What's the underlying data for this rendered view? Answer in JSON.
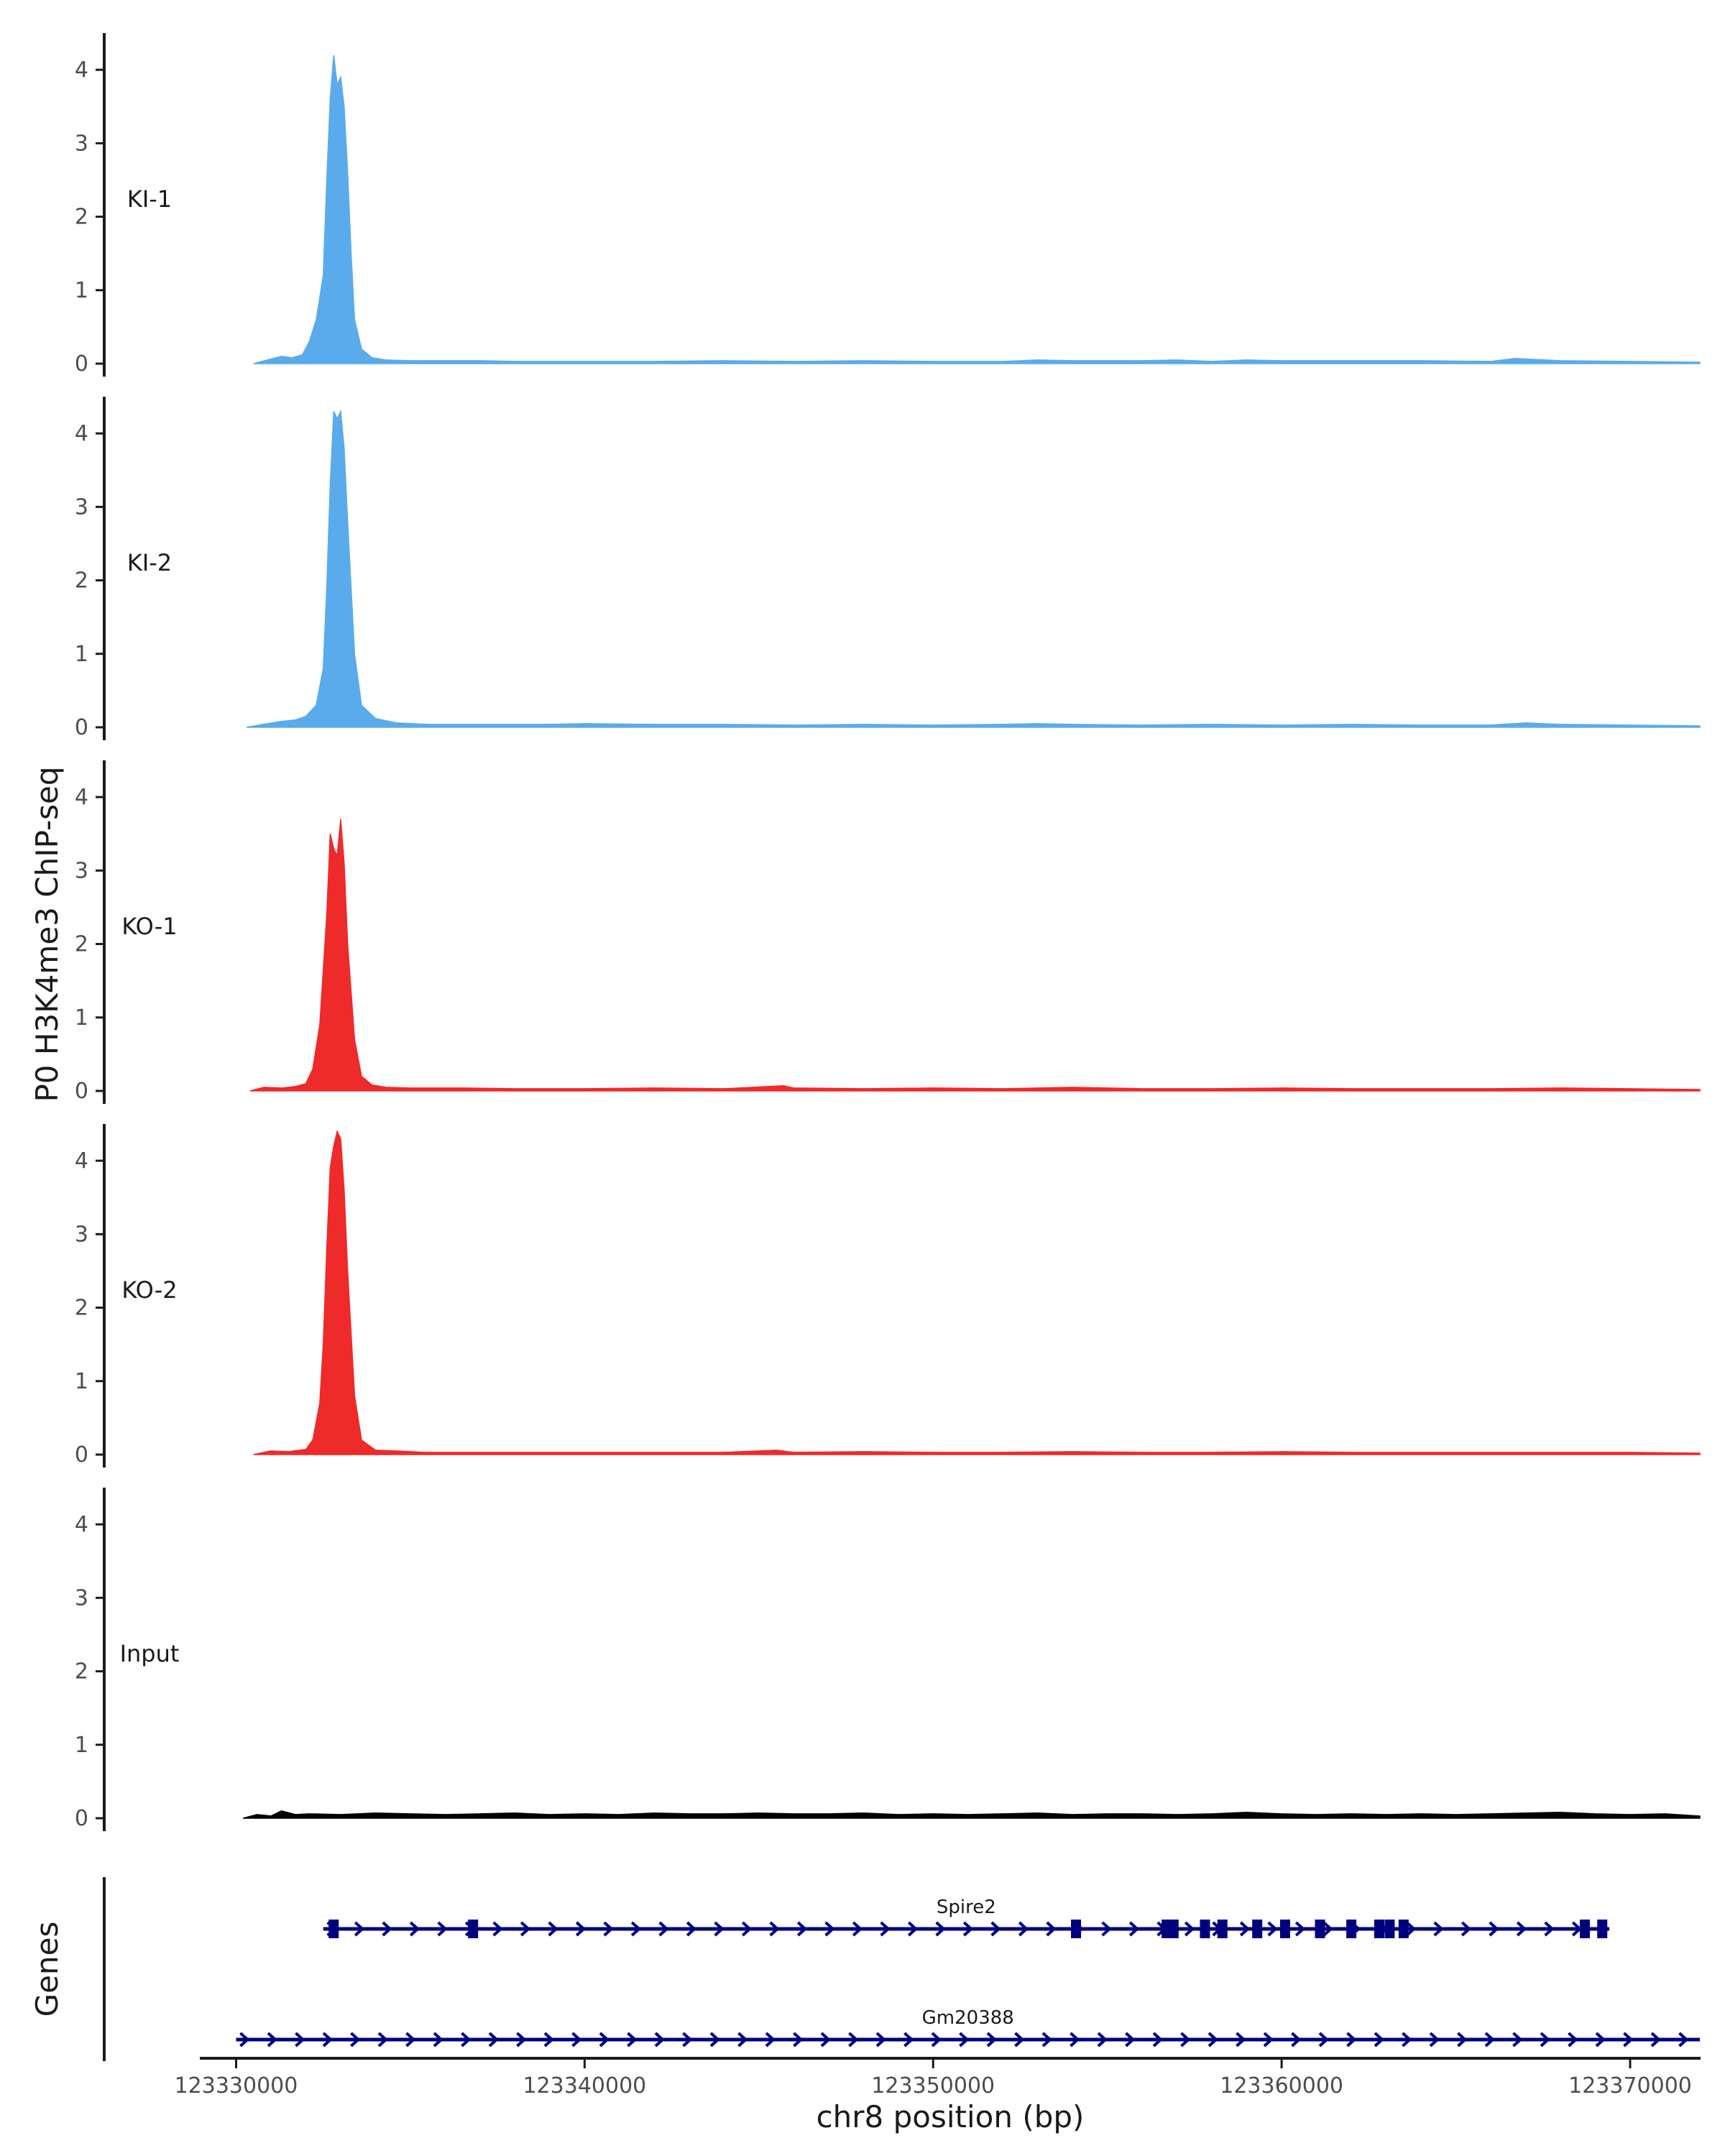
{
  "chart_data": {
    "type": "area",
    "ylabel": "P0 H3K4me3 ChIP-seq",
    "xlabel": "chr8 position (bp)",
    "genes_label": "Genes",
    "xlim": [
      123329000,
      123372000
    ],
    "ylim": [
      0,
      4.5
    ],
    "y_ticks": [
      0,
      1,
      2,
      3,
      4
    ],
    "x_ticks": [
      {
        "value": 123330000,
        "label": "123330000"
      },
      {
        "value": 123340000,
        "label": "123340000"
      },
      {
        "value": 123350000,
        "label": "123350000"
      },
      {
        "value": 123360000,
        "label": "123360000"
      },
      {
        "value": 123370000,
        "label": "123370000"
      }
    ],
    "tracks": [
      {
        "name": "KI-1",
        "color": "#5aabeb",
        "x": [
          123330500,
          123330900,
          123331300,
          123331600,
          123331900,
          123332100,
          123332300,
          123332500,
          123332600,
          123332700,
          123332800,
          123332900,
          123333000,
          123333100,
          123333200,
          123333300,
          123333400,
          123333600,
          123333900,
          123334300,
          123335000,
          123336000,
          123337000,
          123338000,
          123340000,
          123342000,
          123344000,
          123346000,
          123348000,
          123350000,
          123352000,
          123353000,
          123354000,
          123356000,
          123357000,
          123358000,
          123359000,
          123360000,
          123362000,
          123364000,
          123366000,
          123366700,
          123368000,
          123370000,
          123372000
        ],
        "values": [
          0.0,
          0.05,
          0.1,
          0.08,
          0.12,
          0.3,
          0.6,
          1.2,
          2.5,
          3.6,
          4.2,
          3.8,
          3.9,
          3.5,
          2.6,
          1.5,
          0.6,
          0.2,
          0.08,
          0.05,
          0.04,
          0.04,
          0.04,
          0.03,
          0.03,
          0.03,
          0.04,
          0.03,
          0.04,
          0.03,
          0.03,
          0.05,
          0.04,
          0.04,
          0.05,
          0.03,
          0.05,
          0.04,
          0.04,
          0.04,
          0.03,
          0.07,
          0.04,
          0.03,
          0.02
        ]
      },
      {
        "name": "KI-2",
        "color": "#5aabeb",
        "x": [
          123330300,
          123330900,
          123331300,
          123331700,
          123332000,
          123332300,
          123332500,
          123332600,
          123332700,
          123332800,
          123332900,
          123333000,
          123333100,
          123333200,
          123333400,
          123333600,
          123334000,
          123334600,
          123335500,
          123337000,
          123339000,
          123340000,
          123342000,
          123344000,
          123346000,
          123348000,
          123350000,
          123352000,
          123353000,
          123354000,
          123356000,
          123358000,
          123360000,
          123362000,
          123364000,
          123366000,
          123367000,
          123368000,
          123370000,
          123372000
        ],
        "values": [
          0.0,
          0.05,
          0.08,
          0.1,
          0.15,
          0.3,
          0.8,
          1.9,
          3.3,
          4.3,
          4.2,
          4.3,
          3.8,
          2.8,
          1.0,
          0.3,
          0.12,
          0.06,
          0.04,
          0.04,
          0.04,
          0.05,
          0.04,
          0.04,
          0.03,
          0.04,
          0.03,
          0.04,
          0.05,
          0.04,
          0.03,
          0.04,
          0.03,
          0.04,
          0.03,
          0.03,
          0.06,
          0.04,
          0.03,
          0.02
        ]
      },
      {
        "name": "KO-1",
        "color": "#ee2a2a",
        "x": [
          123330400,
          123330800,
          123331300,
          123331700,
          123332000,
          123332200,
          123332400,
          123332600,
          123332700,
          123332800,
          123332900,
          123333000,
          123333100,
          123333200,
          123333400,
          123333600,
          123333900,
          123334300,
          123335000,
          123336500,
          123338000,
          123340000,
          123342000,
          123344000,
          123345700,
          123346000,
          123348000,
          123350000,
          123352000,
          123354000,
          123356000,
          123358000,
          123360000,
          123362000,
          123364000,
          123366000,
          123368000,
          123370000,
          123372000
        ],
        "values": [
          0.0,
          0.05,
          0.04,
          0.06,
          0.1,
          0.3,
          0.9,
          2.4,
          3.5,
          3.3,
          3.2,
          3.7,
          3.1,
          2.0,
          0.7,
          0.2,
          0.08,
          0.05,
          0.04,
          0.04,
          0.03,
          0.03,
          0.04,
          0.03,
          0.07,
          0.04,
          0.03,
          0.04,
          0.03,
          0.05,
          0.03,
          0.03,
          0.04,
          0.03,
          0.03,
          0.03,
          0.04,
          0.03,
          0.02
        ]
      },
      {
        "name": "KO-2",
        "color": "#ee2a2a",
        "x": [
          123330500,
          123331000,
          123331500,
          123332000,
          123332200,
          123332400,
          123332500,
          123332600,
          123332700,
          123332800,
          123332900,
          123333000,
          123333100,
          123333200,
          123333400,
          123333600,
          123334000,
          123334600,
          123335400,
          123336500,
          123338000,
          123340000,
          123342000,
          123344000,
          123345500,
          123346000,
          123348000,
          123350000,
          123352000,
          123354000,
          123356000,
          123358000,
          123360000,
          123362000,
          123364000,
          123366000,
          123368000,
          123370000,
          123372000
        ],
        "values": [
          0.0,
          0.05,
          0.04,
          0.07,
          0.2,
          0.7,
          1.5,
          2.8,
          3.9,
          4.2,
          4.4,
          4.3,
          3.6,
          2.5,
          0.8,
          0.2,
          0.06,
          0.05,
          0.03,
          0.03,
          0.03,
          0.03,
          0.03,
          0.03,
          0.06,
          0.03,
          0.04,
          0.03,
          0.03,
          0.04,
          0.03,
          0.03,
          0.04,
          0.03,
          0.03,
          0.03,
          0.03,
          0.03,
          0.02
        ]
      },
      {
        "name": "Input",
        "color": "#000000",
        "x": [
          123330200,
          123330600,
          123331000,
          123331300,
          123331700,
          123332100,
          123333000,
          123334000,
          123335000,
          123336000,
          123337000,
          123338000,
          123339000,
          123340000,
          123341000,
          123342000,
          123343000,
          123344000,
          123345000,
          123346000,
          123347000,
          123348000,
          123349000,
          123350000,
          123351000,
          123352000,
          123353000,
          123354000,
          123355000,
          123356000,
          123357000,
          123358000,
          123359000,
          123360000,
          123361000,
          123362000,
          123363000,
          123364000,
          123365000,
          123366000,
          123367000,
          123368000,
          123369000,
          123370000,
          123371000,
          123372000
        ],
        "values": [
          0.0,
          0.05,
          0.03,
          0.1,
          0.05,
          0.06,
          0.05,
          0.07,
          0.06,
          0.05,
          0.06,
          0.07,
          0.05,
          0.06,
          0.05,
          0.07,
          0.06,
          0.06,
          0.07,
          0.06,
          0.06,
          0.07,
          0.05,
          0.06,
          0.05,
          0.06,
          0.07,
          0.05,
          0.06,
          0.06,
          0.05,
          0.06,
          0.08,
          0.06,
          0.05,
          0.06,
          0.05,
          0.06,
          0.05,
          0.06,
          0.07,
          0.08,
          0.06,
          0.05,
          0.06,
          0.03
        ]
      }
    ],
    "genes": [
      {
        "name": "Spire2",
        "color": "#00007f",
        "start": 123332500,
        "end": 123369400,
        "exons": [
          123332800,
          123336800,
          123354100,
          123356700,
          123356900,
          123357800,
          123358300,
          123359300,
          123360100,
          123361100,
          123362000,
          123362800,
          123363100,
          123363500,
          123368700,
          123369200
        ]
      },
      {
        "name": "Gm20388",
        "color": "#00007f",
        "start": 123330000,
        "end": 123372000,
        "exons": []
      }
    ]
  }
}
